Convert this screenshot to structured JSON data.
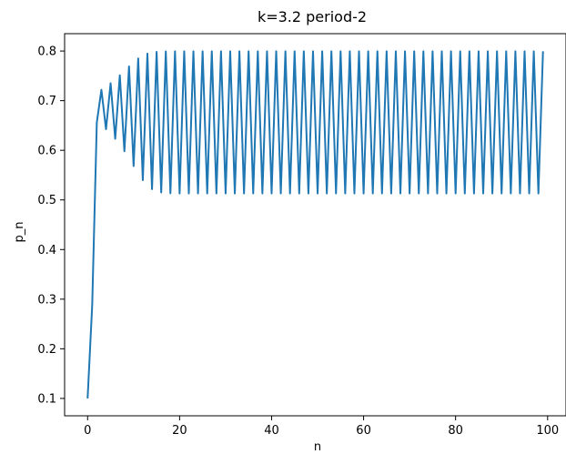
{
  "chart_data": {
    "type": "line",
    "title": "k=3.2 period-2",
    "xlabel": "n",
    "ylabel": "p_n",
    "xlim": [
      -5,
      104
    ],
    "ylim": [
      0.065,
      0.835
    ],
    "xticks": [
      0,
      20,
      40,
      60,
      80,
      100
    ],
    "yticks": [
      0.1,
      0.2,
      0.3,
      0.4,
      0.5,
      0.6,
      0.7,
      0.8
    ],
    "grid": false,
    "legend": "none",
    "series": [
      {
        "color": "#1f77b4",
        "x": [
          0,
          1,
          2,
          3,
          4,
          5,
          6,
          7,
          8,
          9,
          10,
          11,
          12,
          13,
          14,
          15,
          16,
          17,
          18,
          19,
          20,
          21,
          22,
          23,
          24,
          25,
          26,
          27,
          28,
          29,
          30,
          31,
          32,
          33,
          34,
          35,
          36,
          37,
          38,
          39,
          40,
          41,
          42,
          43,
          44,
          45,
          46,
          47,
          48,
          49,
          50,
          51,
          52,
          53,
          54,
          55,
          56,
          57,
          58,
          59,
          60,
          61,
          62,
          63,
          64,
          65,
          66,
          67,
          68,
          69,
          70,
          71,
          72,
          73,
          74,
          75,
          76,
          77,
          78,
          79,
          80,
          81,
          82,
          83,
          84,
          85,
          86,
          87,
          88,
          89,
          90,
          91,
          92,
          93,
          94,
          95,
          96,
          97,
          98,
          99
        ],
        "y": [
          0.1,
          0.288,
          0.6561,
          0.7219,
          0.6424,
          0.7351,
          0.6232,
          0.7512,
          0.5981,
          0.7691,
          0.5683,
          0.7851,
          0.5399,
          0.7949,
          0.5217,
          0.7984,
          0.5151,
          0.7993,
          0.5134,
          0.7995,
          0.513,
          0.7995,
          0.513,
          0.7995,
          0.513,
          0.7995,
          0.513,
          0.7995,
          0.513,
          0.7995,
          0.513,
          0.7995,
          0.513,
          0.7995,
          0.513,
          0.7995,
          0.513,
          0.7995,
          0.513,
          0.7995,
          0.513,
          0.7995,
          0.513,
          0.7995,
          0.513,
          0.7995,
          0.513,
          0.7995,
          0.513,
          0.7995,
          0.513,
          0.7995,
          0.513,
          0.7995,
          0.513,
          0.7995,
          0.513,
          0.7995,
          0.513,
          0.7995,
          0.513,
          0.7995,
          0.513,
          0.7995,
          0.513,
          0.7995,
          0.513,
          0.7995,
          0.513,
          0.7995,
          0.513,
          0.7995,
          0.513,
          0.7995,
          0.513,
          0.7995,
          0.513,
          0.7995,
          0.513,
          0.7995,
          0.513,
          0.7995,
          0.513,
          0.7995,
          0.513,
          0.7995,
          0.513,
          0.7995,
          0.513,
          0.7995,
          0.513,
          0.7995,
          0.513,
          0.7995,
          0.513,
          0.7995,
          0.513,
          0.7995,
          0.513,
          0.7995
        ]
      }
    ]
  }
}
